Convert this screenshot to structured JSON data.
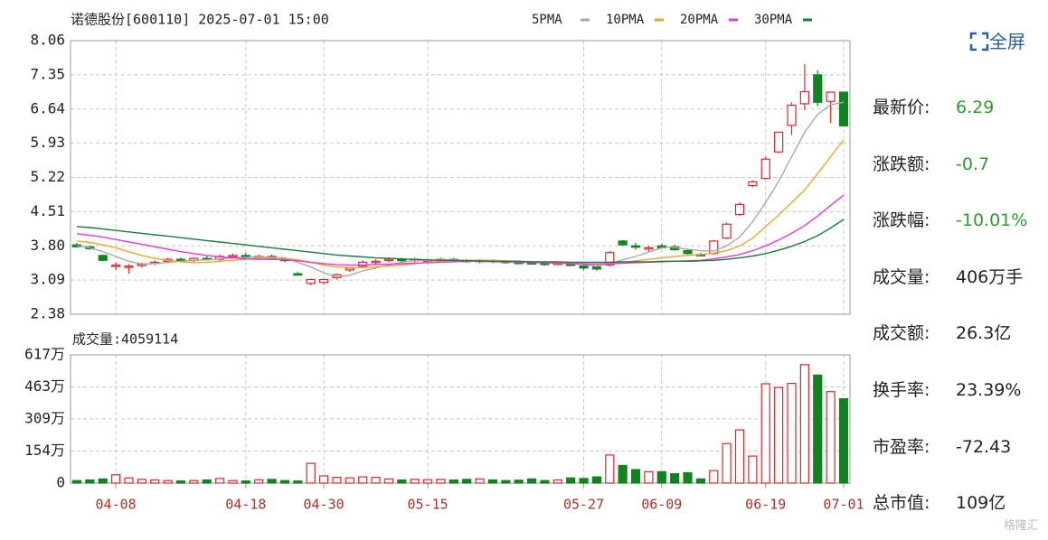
{
  "chart_data": [
    {
      "type": "candlestick",
      "title": "诺德股份[600110] 2025-07-01 15:00",
      "categories": [
        null,
        null,
        null,
        "04-08",
        null,
        null,
        null,
        null,
        null,
        null,
        null,
        null,
        null,
        "04-18",
        null,
        null,
        null,
        null,
        null,
        "04-30",
        null,
        null,
        null,
        null,
        null,
        null,
        null,
        "05-15",
        null,
        null,
        null,
        null,
        null,
        null,
        null,
        null,
        null,
        null,
        null,
        "05-27",
        null,
        null,
        null,
        null,
        null,
        "06-09",
        null,
        null,
        null,
        null,
        null,
        null,
        null,
        "06-19",
        null,
        null,
        null,
        null,
        null,
        "07-01"
      ],
      "open": [
        3.82,
        3.78,
        3.6,
        3.38,
        3.36,
        3.4,
        3.44,
        3.48,
        3.52,
        3.5,
        3.54,
        3.52,
        3.58,
        3.6,
        3.56,
        3.58,
        3.52,
        3.22,
        3.02,
        3.04,
        3.14,
        3.3,
        3.38,
        3.46,
        3.5,
        3.52,
        3.5,
        3.48,
        3.5,
        3.52,
        3.5,
        3.48,
        3.5,
        3.48,
        3.46,
        3.45,
        3.44,
        3.42,
        3.42,
        3.38,
        3.36,
        3.4,
        3.9,
        3.8,
        3.74,
        3.8,
        3.78,
        3.7,
        3.62,
        3.64,
        3.96,
        4.45,
        5.05,
        5.2,
        5.75,
        6.3,
        6.75,
        7.35,
        6.8,
        6.99
      ],
      "high": [
        3.86,
        3.8,
        3.62,
        3.46,
        3.42,
        3.45,
        3.5,
        3.55,
        3.56,
        3.56,
        3.6,
        3.62,
        3.64,
        3.65,
        3.62,
        3.62,
        3.56,
        3.26,
        3.12,
        3.12,
        3.22,
        3.36,
        3.5,
        3.52,
        3.56,
        3.55,
        3.55,
        3.53,
        3.55,
        3.55,
        3.53,
        3.52,
        3.52,
        3.5,
        3.49,
        3.48,
        3.46,
        3.46,
        3.45,
        3.4,
        3.38,
        3.7,
        3.92,
        3.86,
        3.8,
        3.84,
        3.82,
        3.74,
        3.66,
        3.92,
        4.28,
        4.7,
        5.16,
        5.65,
        6.16,
        6.78,
        7.57,
        7.45,
        7.0,
        6.95
      ],
      "low": [
        3.76,
        3.72,
        3.48,
        3.3,
        3.22,
        3.35,
        3.4,
        3.44,
        3.48,
        3.46,
        3.5,
        3.46,
        3.54,
        3.54,
        3.5,
        3.5,
        3.46,
        3.18,
        2.98,
        3.0,
        3.1,
        3.26,
        3.34,
        3.42,
        3.46,
        3.47,
        3.46,
        3.45,
        3.46,
        3.47,
        3.45,
        3.44,
        3.44,
        3.43,
        3.42,
        3.41,
        3.39,
        3.4,
        3.38,
        3.3,
        3.28,
        3.38,
        3.8,
        3.72,
        3.68,
        3.74,
        3.7,
        3.62,
        3.58,
        3.62,
        3.94,
        4.42,
        5.02,
        5.18,
        5.72,
        6.1,
        6.62,
        6.7,
        6.35,
        6.29
      ],
      "close": [
        3.78,
        3.74,
        3.5,
        3.4,
        3.38,
        3.42,
        3.46,
        3.52,
        3.5,
        3.54,
        3.52,
        3.58,
        3.6,
        3.56,
        3.58,
        3.52,
        3.5,
        3.2,
        3.1,
        3.1,
        3.2,
        3.34,
        3.46,
        3.48,
        3.52,
        3.5,
        3.52,
        3.5,
        3.52,
        3.5,
        3.48,
        3.5,
        3.48,
        3.46,
        3.45,
        3.44,
        3.42,
        3.44,
        3.4,
        3.34,
        3.32,
        3.66,
        3.82,
        3.78,
        3.76,
        3.76,
        3.72,
        3.64,
        3.6,
        3.9,
        4.25,
        4.66,
        5.13,
        5.6,
        6.16,
        6.72,
        7.0,
        6.78,
        6.99,
        6.29
      ],
      "up_color": "#e5232a",
      "down_color": "#13831f",
      "series": [
        {
          "name": "5PMA",
          "color": "#a9a9a9",
          "values": [
            3.8,
            3.76,
            3.68,
            3.58,
            3.48,
            3.42,
            3.43,
            3.46,
            3.48,
            3.5,
            3.51,
            3.53,
            3.55,
            3.56,
            3.57,
            3.56,
            3.55,
            3.46,
            3.36,
            3.24,
            3.15,
            3.19,
            3.28,
            3.34,
            3.4,
            3.46,
            3.5,
            3.5,
            3.51,
            3.51,
            3.5,
            3.5,
            3.49,
            3.48,
            3.47,
            3.46,
            3.45,
            3.44,
            3.43,
            3.41,
            3.38,
            3.43,
            3.51,
            3.58,
            3.67,
            3.76,
            3.77,
            3.73,
            3.7,
            3.69,
            3.8,
            3.98,
            4.3,
            4.7,
            5.14,
            5.65,
            6.16,
            6.53,
            6.73,
            6.78
          ]
        },
        {
          "name": "10PMA",
          "color": "#efa531",
          "values": [
            3.9,
            3.87,
            3.82,
            3.76,
            3.68,
            3.6,
            3.54,
            3.5,
            3.47,
            3.45,
            3.46,
            3.48,
            3.5,
            3.52,
            3.54,
            3.55,
            3.54,
            3.51,
            3.46,
            3.4,
            3.36,
            3.35,
            3.35,
            3.36,
            3.38,
            3.4,
            3.43,
            3.46,
            3.48,
            3.5,
            3.5,
            3.5,
            3.5,
            3.49,
            3.48,
            3.47,
            3.46,
            3.45,
            3.44,
            3.43,
            3.42,
            3.43,
            3.46,
            3.49,
            3.52,
            3.55,
            3.58,
            3.6,
            3.62,
            3.65,
            3.7,
            3.8,
            3.96,
            4.2,
            4.44,
            4.7,
            4.96,
            5.3,
            5.65,
            6.0
          ]
        },
        {
          "name": "20PMA",
          "color": "#e23ce0",
          "values": [
            4.05,
            4.02,
            3.98,
            3.93,
            3.88,
            3.83,
            3.78,
            3.73,
            3.68,
            3.64,
            3.6,
            3.57,
            3.55,
            3.53,
            3.52,
            3.52,
            3.51,
            3.49,
            3.46,
            3.43,
            3.41,
            3.4,
            3.4,
            3.41,
            3.42,
            3.43,
            3.44,
            3.45,
            3.46,
            3.47,
            3.48,
            3.48,
            3.47,
            3.47,
            3.46,
            3.45,
            3.45,
            3.44,
            3.43,
            3.42,
            3.42,
            3.43,
            3.44,
            3.45,
            3.46,
            3.47,
            3.48,
            3.49,
            3.5,
            3.53,
            3.57,
            3.62,
            3.7,
            3.8,
            3.92,
            4.06,
            4.22,
            4.42,
            4.64,
            4.85
          ]
        },
        {
          "name": "30PMA",
          "color": "#1c7a3c",
          "values": [
            4.2,
            4.18,
            4.15,
            4.12,
            4.09,
            4.06,
            4.03,
            4.0,
            3.97,
            3.94,
            3.91,
            3.88,
            3.85,
            3.82,
            3.79,
            3.76,
            3.73,
            3.7,
            3.67,
            3.64,
            3.61,
            3.59,
            3.57,
            3.55,
            3.54,
            3.53,
            3.52,
            3.51,
            3.5,
            3.5,
            3.49,
            3.49,
            3.48,
            3.48,
            3.48,
            3.47,
            3.47,
            3.47,
            3.46,
            3.46,
            3.46,
            3.46,
            3.47,
            3.47,
            3.47,
            3.48,
            3.48,
            3.48,
            3.49,
            3.5,
            3.52,
            3.55,
            3.59,
            3.64,
            3.71,
            3.79,
            3.89,
            4.01,
            4.17,
            4.35
          ]
        }
      ],
      "ylim": [
        2.38,
        8.06
      ],
      "yticks": [
        8.06,
        7.35,
        6.64,
        5.93,
        5.22,
        4.51,
        {
          "value": 3.8,
          "label": "3.80"
        },
        3.09,
        2.38
      ],
      "grid": true
    },
    {
      "type": "bar",
      "title": "成交量:4059114",
      "values": [
        12,
        15,
        20,
        40,
        25,
        18,
        15,
        12,
        10,
        12,
        15,
        22,
        12,
        10,
        16,
        18,
        12,
        10,
        95,
        35,
        28,
        25,
        30,
        28,
        20,
        15,
        18,
        16,
        18,
        15,
        18,
        20,
        15,
        12,
        14,
        20,
        12,
        15,
        25,
        22,
        30,
        135,
        85,
        65,
        55,
        55,
        45,
        50,
        20,
        60,
        190,
        256,
        130,
        478,
        460,
        480,
        570,
        520,
        440,
        406
      ],
      "ylim": [
        0,
        617
      ],
      "yticks": [
        {
          "value": 617,
          "label": "617万"
        },
        {
          "value": 463,
          "label": "463万"
        },
        {
          "value": 309,
          "label": "309万"
        },
        {
          "value": 154,
          "label": "154万"
        },
        0
      ],
      "grid": true
    }
  ],
  "fullscreen": "全屏",
  "info": [
    {
      "label": "最新价:",
      "value": "6.29"
    },
    {
      "label": "涨跌额:",
      "value": "-0.7"
    },
    {
      "label": "涨跌幅:",
      "value": "-10.01%"
    },
    {
      "label": "成交量:",
      "value": "406万手"
    },
    {
      "label": "成交额:",
      "value": "26.3亿"
    },
    {
      "label": "换手率:",
      "value": "23.39%"
    },
    {
      "label": "市盈率:",
      "value": "-72.43"
    },
    {
      "label": "总市值:",
      "value": "109亿"
    }
  ],
  "watermark": "格隆汇"
}
